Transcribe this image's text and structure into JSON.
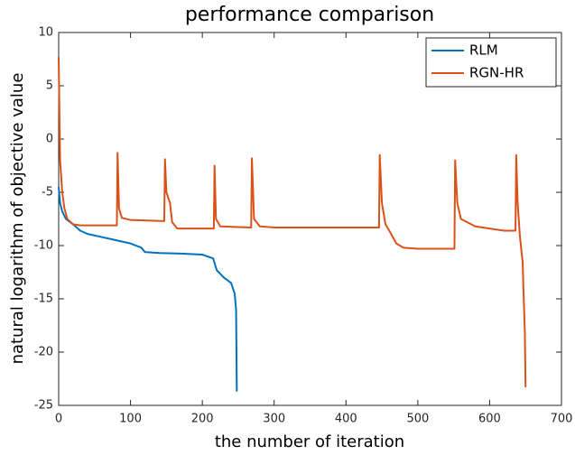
{
  "chart_data": {
    "type": "line",
    "title": "performance comparison",
    "x_label": "the number of iteration",
    "y_label": "natural logarithm of objective value",
    "xlim": [
      0,
      700
    ],
    "xticks": [
      0,
      100,
      200,
      300,
      400,
      500,
      600,
      700
    ],
    "ylim": [
      -25,
      10
    ],
    "yticks": [
      -25,
      -20,
      -15,
      -10,
      -5,
      0,
      5,
      10
    ],
    "legend": "upper right",
    "series": [
      {
        "name": "RLM",
        "color": "#0072bd",
        "x": [
          0,
          2,
          5,
          10,
          20,
          30,
          40,
          60,
          80,
          100,
          115,
          120,
          140,
          170,
          200,
          215,
          220,
          230,
          240,
          245,
          247,
          248
        ],
        "values": [
          -4.5,
          -6,
          -6.8,
          -7.5,
          -8,
          -8.6,
          -8.9,
          -9.2,
          -9.5,
          -9.8,
          -10.2,
          -10.6,
          -10.7,
          -10.75,
          -10.85,
          -11.2,
          -12.3,
          -13,
          -13.5,
          -14.5,
          -16,
          -23.7
        ]
      },
      {
        "name": "RGN-HR",
        "color": "#d95319",
        "x": [
          0,
          2,
          5,
          8,
          12,
          20,
          30,
          81,
          82,
          84,
          88,
          100,
          147,
          148,
          150,
          155,
          158,
          165,
          216,
          217,
          219,
          225,
          268,
          269,
          272,
          280,
          300,
          446,
          447,
          450,
          455,
          462,
          470,
          480,
          500,
          551,
          552,
          555,
          560,
          580,
          620,
          636,
          637,
          639,
          642,
          645,
          646,
          647,
          649,
          650
        ],
        "values": [
          7.7,
          -2,
          -5,
          -6.5,
          -7.5,
          -8,
          -8.1,
          -8.1,
          -1.3,
          -6.5,
          -7.4,
          -7.6,
          -7.7,
          -1.9,
          -5,
          -6,
          -7.8,
          -8.4,
          -8.4,
          -2.5,
          -7.5,
          -8.2,
          -8.3,
          -1.8,
          -7.5,
          -8.2,
          -8.3,
          -8.3,
          -1.5,
          -6,
          -8,
          -8.8,
          -9.8,
          -10.2,
          -10.3,
          -10.3,
          -2,
          -6,
          -7.5,
          -8.2,
          -8.6,
          -8.6,
          -1.5,
          -6,
          -9,
          -11,
          -11.5,
          -14,
          -18,
          -23.3
        ]
      }
    ]
  }
}
